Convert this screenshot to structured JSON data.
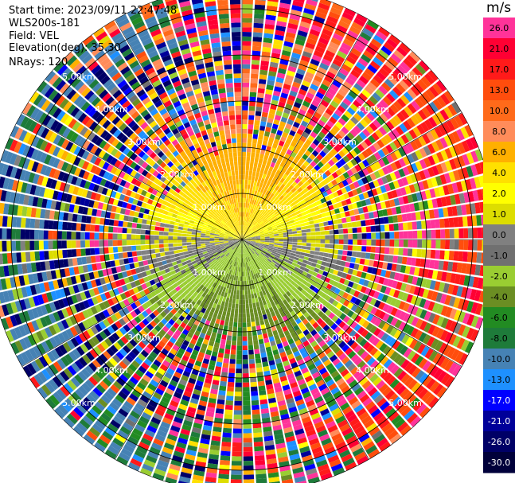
{
  "header": {
    "start_time": "Start time: 2023/09/11 22:47:48",
    "instrument": "WLS200s-181",
    "field": "Field: VEL",
    "elevation": "Elevation(deg): 35.30",
    "nrays": "NRays: 120"
  },
  "colorbar": {
    "unit": "m/s",
    "labels": [
      "26.0",
      "21.0",
      "17.0",
      "13.0",
      "10.0",
      "8.0",
      "6.0",
      "4.0",
      "2.0",
      "1.0",
      "0.0",
      "-1.0",
      "-2.0",
      "-4.0",
      "-6.0",
      "-8.0",
      "-10.0",
      "-13.0",
      "-17.0",
      "-21.0",
      "-26.0",
      "-30.0"
    ],
    "colors": [
      "#ff3399",
      "#ff0033",
      "#ff1a1a",
      "#ff4d0d",
      "#ff6a1a",
      "#ff8c5a",
      "#ffb000",
      "#ffe000",
      "#ffff00",
      "#dddd00",
      "#808080",
      "#707070",
      "#9acd32",
      "#6b8e23",
      "#228b22",
      "#1e7b3a",
      "#4682b4",
      "#1e90ff",
      "#0000ff",
      "#000099",
      "#000066",
      "#00003a"
    ]
  },
  "chart_data": {
    "type": "ppi",
    "field": "VEL",
    "units": "m/s",
    "n_rays": 120,
    "elevation_deg": 35.3,
    "range_ring_labels": [
      "1.00km",
      "2.00km",
      "3.00km",
      "4.00km",
      "5.00km"
    ],
    "max_range_km": 5.5,
    "vmin": -30.0,
    "vmax": 26.0,
    "pattern": "positive (orange/yellow) velocities in northern half near the centre, grey near-zero band along east-west axis, negative (green) velocities in the southern half; noisy multicolour outer ranges beyond ~2.5 km; red/orange east sector and blue west sector at long range"
  }
}
